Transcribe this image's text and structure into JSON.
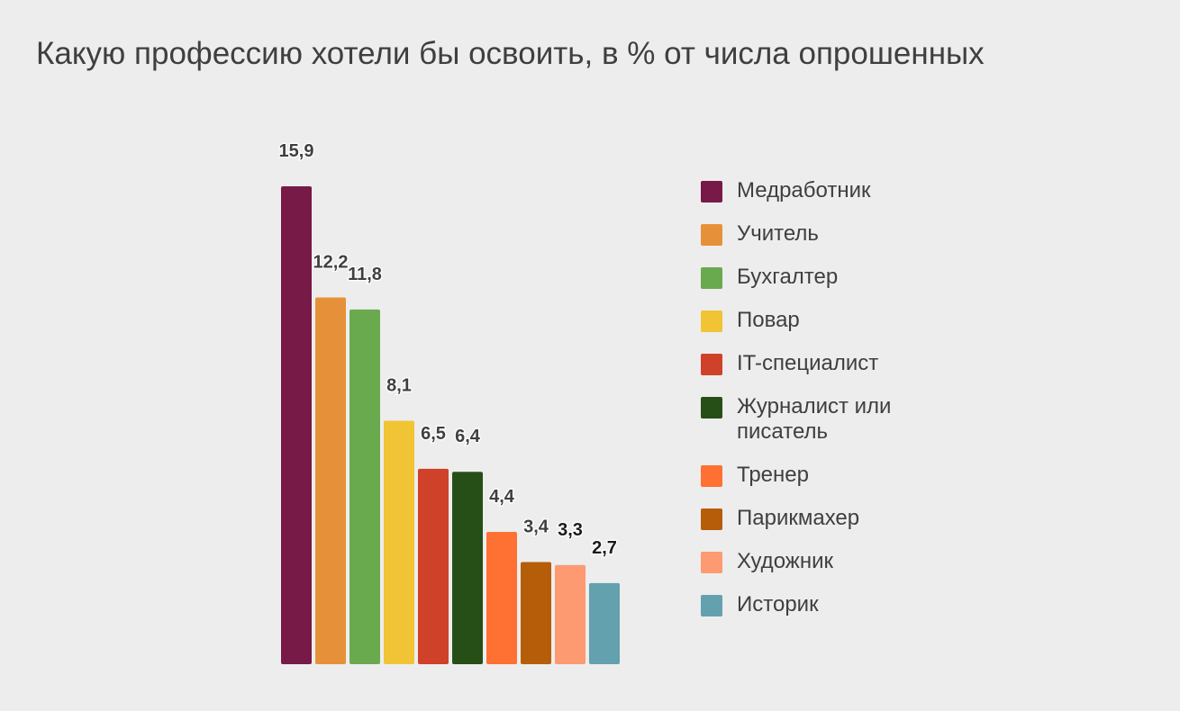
{
  "chart_data": {
    "type": "bar",
    "title": "Какую профессию хотели бы освоить, в % от числа опрошенных",
    "xlabel": "",
    "ylabel": "",
    "ylim": [
      0,
      16
    ],
    "grid": false,
    "legend_position": "right",
    "categories": [
      "Медработник",
      "Учитель",
      "Бухгалтер",
      "Повар",
      "IT-специалист",
      "Журналист или писатель",
      "Тренер",
      "Парикмахер",
      "Художник",
      "Историк"
    ],
    "values": [
      15.9,
      12.2,
      11.8,
      8.1,
      6.5,
      6.4,
      4.4,
      3.4,
      3.3,
      2.7
    ],
    "value_labels": [
      "15,9",
      "12,2",
      "11,8",
      "8,1",
      "6,5",
      "6,4",
      "4,4",
      "3,4",
      "3,3",
      "2,7"
    ],
    "colors": [
      "#771a47",
      "#e6913a",
      "#6aaa4f",
      "#f0c435",
      "#cf4128",
      "#264f17",
      "#ff7033",
      "#b65d09",
      "#fd9a72",
      "#63a1ae"
    ],
    "label_colors": [
      "#3f3f3f",
      "#3f3f3f",
      "#3f3f3f",
      "#3f3f3f",
      "#3f3f3f",
      "#3f3f3f",
      "#3f3f3f",
      "#3f3f3f",
      "#1a1a1a",
      "#1a1a1a"
    ]
  }
}
